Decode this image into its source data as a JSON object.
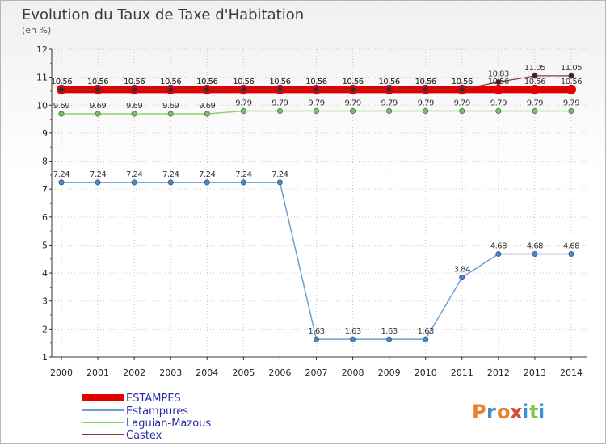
{
  "chart_data": {
    "type": "line",
    "title": "Evolution du Taux de Taxe d'Habitation",
    "subtitle": "(en %)",
    "categories": [
      "2000",
      "2001",
      "2002",
      "2003",
      "2004",
      "2005",
      "2006",
      "2007",
      "2008",
      "2009",
      "2010",
      "2011",
      "2012",
      "2013",
      "2014"
    ],
    "ylim": [
      1,
      12
    ],
    "yticks": [
      "1",
      "2",
      "3",
      "4",
      "5",
      "6",
      "7",
      "8",
      "9",
      "10",
      "11",
      "12"
    ],
    "series": [
      {
        "name": "ESTAMPES",
        "color": "#e00000",
        "values": [
          10.56,
          10.56,
          10.56,
          10.56,
          10.56,
          10.56,
          10.56,
          10.56,
          10.56,
          10.56,
          10.56,
          10.56,
          10.56,
          10.56,
          10.56
        ],
        "labels": [
          "10.56",
          "10.56",
          "10.56",
          "10.56",
          "10.56",
          "10.56",
          "10.56",
          "10.56",
          "10.56",
          "10.56",
          "10.56",
          "10.56",
          "10.56",
          "10.56",
          "10.56"
        ]
      },
      {
        "name": "Estampures",
        "color": "#6f9fd0",
        "values": [
          7.24,
          7.24,
          7.24,
          7.24,
          7.24,
          7.24,
          7.24,
          1.63,
          1.63,
          1.63,
          1.63,
          3.84,
          4.68,
          4.68,
          4.68
        ],
        "labels": [
          "7.24",
          "7.24",
          "7.24",
          "7.24",
          "7.24",
          "7.24",
          "7.24",
          "1.63",
          "1.63",
          "1.63",
          "1.63",
          "3.84",
          "4.68",
          "4.68",
          "4.68"
        ]
      },
      {
        "name": "Laguian-Mazous",
        "color": "#8fd26c",
        "values": [
          9.69,
          9.69,
          9.69,
          9.69,
          9.69,
          9.79,
          9.79,
          9.79,
          9.79,
          9.79,
          9.79,
          9.79,
          9.79,
          9.79,
          9.79
        ],
        "labels": [
          "9.69",
          "9.69",
          "9.69",
          "9.69",
          "9.69",
          "9.79",
          "9.79",
          "9.79",
          "9.79",
          "9.79",
          "9.79",
          "9.79",
          "9.79",
          "9.79",
          "9.79"
        ]
      },
      {
        "name": "Castex",
        "color": "#8b3a3a",
        "values": [
          10.56,
          10.56,
          10.56,
          10.56,
          10.56,
          10.56,
          10.56,
          10.56,
          10.56,
          10.56,
          10.56,
          10.56,
          10.83,
          11.05,
          11.05
        ],
        "labels": [
          "10.56",
          "10.56",
          "10.56",
          "10.56",
          "10.56",
          "10.56",
          "10.56",
          "10.56",
          "10.56",
          "10.56",
          "10.56",
          "10.56",
          "10.83",
          "11.05",
          "11.05"
        ]
      }
    ]
  },
  "logo": {
    "text": "Proxiti",
    "letters": [
      "P",
      "r",
      "o",
      "x",
      "i",
      "t",
      "i"
    ]
  }
}
